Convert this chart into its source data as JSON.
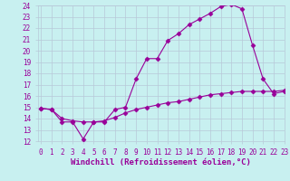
{
  "xlabel": "Windchill (Refroidissement éolien,°C)",
  "bg_color": "#c8f0f0",
  "grid_color": "#b8c8d8",
  "line_color": "#990099",
  "line1_x": [
    0,
    1,
    2,
    3,
    4,
    5,
    6,
    7,
    8,
    9,
    10,
    11,
    12,
    13,
    14,
    15,
    16,
    17,
    18,
    19,
    20,
    21,
    22,
    23
  ],
  "line1_y": [
    14.9,
    14.8,
    13.7,
    13.7,
    12.2,
    13.7,
    13.7,
    14.8,
    15.0,
    17.5,
    19.3,
    19.3,
    20.9,
    21.5,
    22.3,
    22.8,
    23.3,
    23.9,
    24.1,
    23.7,
    20.5,
    17.5,
    16.2,
    16.4
  ],
  "line2_x": [
    0,
    1,
    2,
    3,
    4,
    5,
    6,
    7,
    8,
    9,
    10,
    11,
    12,
    13,
    14,
    15,
    16,
    17,
    18,
    19,
    20,
    21,
    22,
    23
  ],
  "line2_y": [
    14.9,
    14.8,
    14.0,
    13.8,
    13.7,
    13.7,
    13.8,
    14.1,
    14.5,
    14.8,
    15.0,
    15.2,
    15.4,
    15.5,
    15.7,
    15.9,
    16.1,
    16.2,
    16.3,
    16.4,
    16.4,
    16.4,
    16.4,
    16.5
  ],
  "ylim": [
    12,
    24
  ],
  "xlim": [
    -0.3,
    23
  ],
  "yticks": [
    12,
    13,
    14,
    15,
    16,
    17,
    18,
    19,
    20,
    21,
    22,
    23,
    24
  ],
  "xticks": [
    0,
    1,
    2,
    3,
    4,
    5,
    6,
    7,
    8,
    9,
    10,
    11,
    12,
    13,
    14,
    15,
    16,
    17,
    18,
    19,
    20,
    21,
    22,
    23
  ],
  "marker": "D",
  "markersize": 2.5,
  "linewidth": 0.8,
  "xlabel_fontsize": 6.5,
  "tick_fontsize": 5.5
}
